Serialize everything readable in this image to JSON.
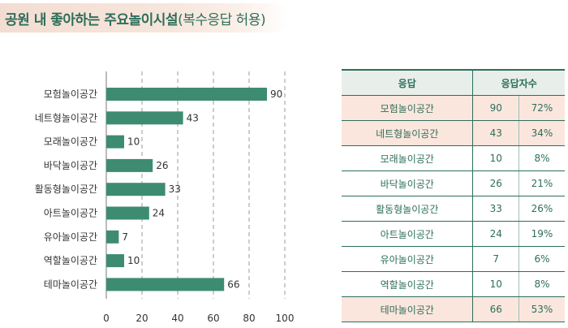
{
  "title": {
    "main": "공원 내 좋아하는 주요놀이시설",
    "note": "(복수응답 허용)"
  },
  "colors": {
    "bar": "#3d8c72",
    "accent": "#2d6e5b",
    "highlight_row": "#fbe6dd",
    "title_band": "#f3ddd2"
  },
  "chart_data": {
    "type": "bar",
    "orientation": "horizontal",
    "categories": [
      "모험놀이공간",
      "네트형놀이공간",
      "모래놀이공간",
      "바닥놀이공간",
      "활동형놀이공간",
      "아트놀이공간",
      "유아놀이공간",
      "역할놀이공간",
      "테마놀이공간"
    ],
    "values": [
      90,
      43,
      10,
      26,
      33,
      24,
      7,
      10,
      66
    ],
    "xlim": [
      0,
      100
    ],
    "xticks": [
      0,
      20,
      40,
      60,
      80,
      100
    ],
    "grid": "vertical-dashed"
  },
  "table": {
    "headers": [
      "응답",
      "응답자수"
    ],
    "rows": [
      {
        "name": "모험놀이공간",
        "count": "90",
        "pct": "72%",
        "highlight": true
      },
      {
        "name": "네트형놀이공간",
        "count": "43",
        "pct": "34%",
        "highlight": true
      },
      {
        "name": "모래놀이공간",
        "count": "10",
        "pct": "8%",
        "highlight": false
      },
      {
        "name": "바닥놀이공간",
        "count": "26",
        "pct": "21%",
        "highlight": false
      },
      {
        "name": "활동형놀이공간",
        "count": "33",
        "pct": "26%",
        "highlight": false
      },
      {
        "name": "아트놀이공간",
        "count": "24",
        "pct": "19%",
        "highlight": false
      },
      {
        "name": "유아놀이공간",
        "count": "7",
        "pct": "6%",
        "highlight": false
      },
      {
        "name": "역할놀이공간",
        "count": "10",
        "pct": "8%",
        "highlight": false
      },
      {
        "name": "테마놀이공간",
        "count": "66",
        "pct": "53%",
        "highlight": true
      }
    ]
  }
}
